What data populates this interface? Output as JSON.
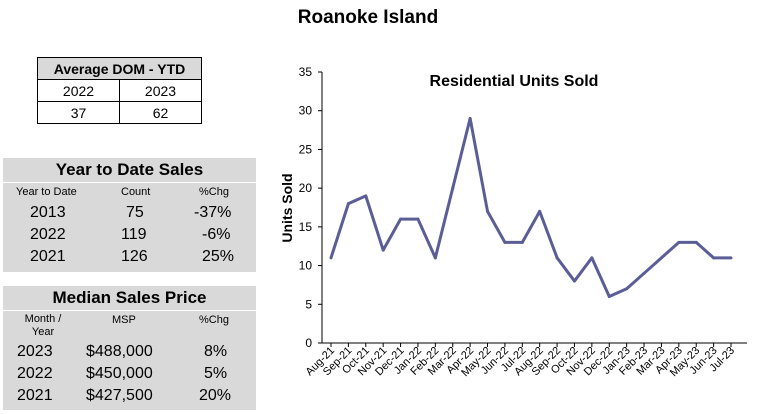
{
  "page_title": "Roanoke Island",
  "avg_dom": {
    "title": "Average DOM - YTD",
    "years": [
      "2022",
      "2023"
    ],
    "values": [
      "37",
      "62"
    ]
  },
  "ytd_sales": {
    "title": "Year to Date Sales",
    "headers": [
      "Year to Date",
      "Count",
      "%Chg"
    ],
    "rows": [
      {
        "year": "2013",
        "count": "75",
        "chg": "-37%"
      },
      {
        "year": "2022",
        "count": "119",
        "chg": "-6%"
      },
      {
        "year": "2021",
        "count": "126",
        "chg": "25%"
      }
    ]
  },
  "median_price": {
    "title": "Median Sales Price",
    "headers": [
      "Month /\nYear",
      "MSP",
      "%Chg"
    ],
    "rows": [
      {
        "year": "2023",
        "msp": "$488,000",
        "chg": "8%"
      },
      {
        "year": "2022",
        "msp": "$450,000",
        "chg": "5%"
      },
      {
        "year": "2021",
        "msp": "$427,500",
        "chg": "20%"
      }
    ]
  },
  "chart_data": {
    "type": "line",
    "title": "Residential Units Sold",
    "xlabel": "",
    "ylabel": "Units Sold",
    "ylim": [
      0,
      35
    ],
    "yticks": [
      0,
      5,
      10,
      15,
      20,
      25,
      30,
      35
    ],
    "grid": false,
    "legend": "none",
    "line_color": "#5b5e96",
    "categories": [
      "Aug-21",
      "Sep-21",
      "Oct-21",
      "Nov-21",
      "Dec-21",
      "Jan-22",
      "Feb-22",
      "Mar-22",
      "Apr-22",
      "May-22",
      "Jun-22",
      "Jul-22",
      "Aug-22",
      "Sep-22",
      "Oct-22",
      "Nov-22",
      "Dec-22",
      "Jan-23",
      "Feb-23",
      "Mar-23",
      "Apr-23",
      "May-23",
      "Jun-23",
      "Jul-23"
    ],
    "values": [
      11,
      18,
      19,
      12,
      16,
      16,
      11,
      20,
      29,
      17,
      13,
      13,
      17,
      11,
      8,
      11,
      6,
      7,
      9,
      11,
      13,
      13,
      11,
      11
    ]
  }
}
